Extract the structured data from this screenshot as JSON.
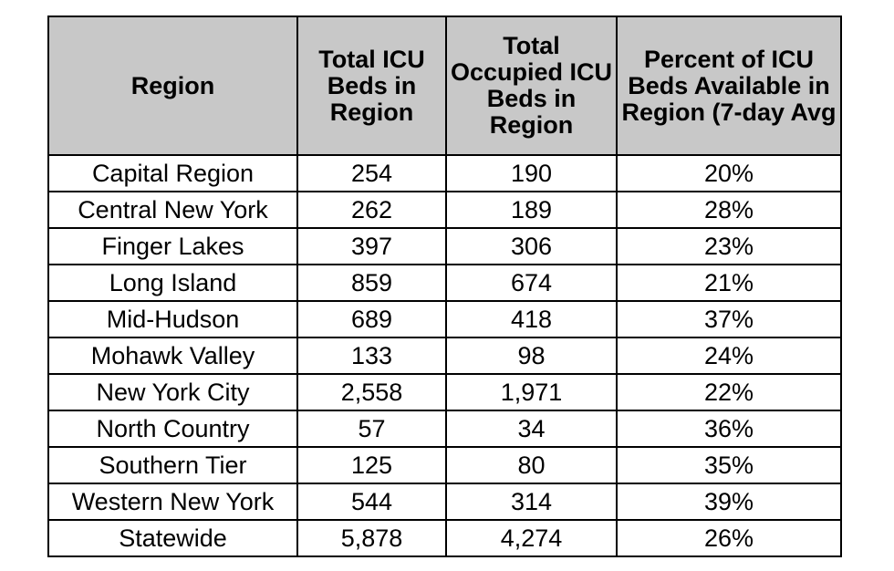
{
  "table": {
    "headers": [
      "Region",
      "Total ICU Beds in Region",
      "Total Occupied ICU Beds in Region",
      "Percent of ICU Beds Available in Region (7-day Avg"
    ],
    "rows": [
      [
        "Capital Region",
        "254",
        "190",
        "20%"
      ],
      [
        "Central New York",
        "262",
        "189",
        "28%"
      ],
      [
        "Finger Lakes",
        "397",
        "306",
        "23%"
      ],
      [
        "Long Island",
        "859",
        "674",
        "21%"
      ],
      [
        "Mid-Hudson",
        "689",
        "418",
        "37%"
      ],
      [
        "Mohawk Valley",
        "133",
        "98",
        "24%"
      ],
      [
        "New York City",
        "2,558",
        "1,971",
        "22%"
      ],
      [
        "North Country",
        "57",
        "34",
        "36%"
      ],
      [
        "Southern Tier",
        "125",
        "80",
        "35%"
      ],
      [
        "Western New York",
        "544",
        "314",
        "39%"
      ],
      [
        "Statewide",
        "5,878",
        "4,274",
        "26%"
      ]
    ]
  },
  "colors": {
    "header_background": "#c8c8c8",
    "border": "#000000",
    "text": "#000000"
  }
}
